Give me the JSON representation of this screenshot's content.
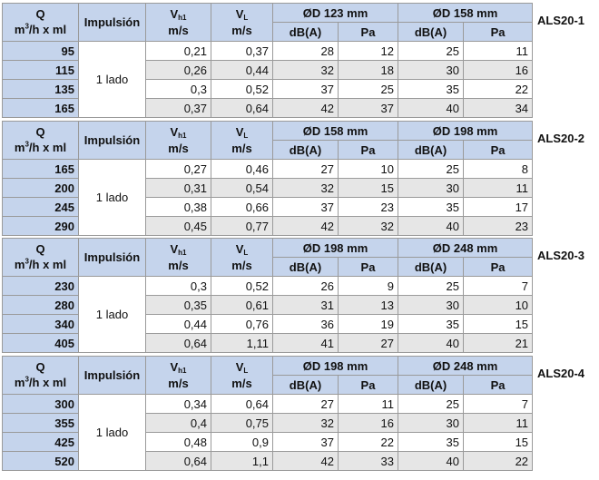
{
  "headers": {
    "q_line1": "Q",
    "q_line2_pre": "m",
    "q_line2_sup": "3",
    "q_line2_post": "/h x ml",
    "impulsion": "Impulsión",
    "vh_main": "V",
    "vh_sub": "h1",
    "vh_unit": "m/s",
    "vl_main": "V",
    "vl_sub": "L",
    "vl_unit": "m/s",
    "dba": "dB(A)",
    "pa": "Pa"
  },
  "blocks": [
    {
      "label": "ALS20-1",
      "d1": "ØD 123 mm",
      "d2": "ØD 158 mm",
      "impulsion": "1 lado",
      "rows": [
        {
          "q": "95",
          "vh": "0,21",
          "vl": "0,37",
          "db1": "28",
          "pa1": "12",
          "db2": "25",
          "pa2": "11"
        },
        {
          "q": "115",
          "vh": "0,26",
          "vl": "0,44",
          "db1": "32",
          "pa1": "18",
          "db2": "30",
          "pa2": "16"
        },
        {
          "q": "135",
          "vh": "0,3",
          "vl": "0,52",
          "db1": "37",
          "pa1": "25",
          "db2": "35",
          "pa2": "22"
        },
        {
          "q": "165",
          "vh": "0,37",
          "vl": "0,64",
          "db1": "42",
          "pa1": "37",
          "db2": "40",
          "pa2": "34"
        }
      ]
    },
    {
      "label": "ALS20-2",
      "d1": "ØD 158 mm",
      "d2": "ØD 198 mm",
      "impulsion": "1 lado",
      "rows": [
        {
          "q": "165",
          "vh": "0,27",
          "vl": "0,46",
          "db1": "27",
          "pa1": "10",
          "db2": "25",
          "pa2": "8"
        },
        {
          "q": "200",
          "vh": "0,31",
          "vl": "0,54",
          "db1": "32",
          "pa1": "15",
          "db2": "30",
          "pa2": "11"
        },
        {
          "q": "245",
          "vh": "0,38",
          "vl": "0,66",
          "db1": "37",
          "pa1": "23",
          "db2": "35",
          "pa2": "17"
        },
        {
          "q": "290",
          "vh": "0,45",
          "vl": "0,77",
          "db1": "42",
          "pa1": "32",
          "db2": "40",
          "pa2": "23"
        }
      ]
    },
    {
      "label": "ALS20-3",
      "d1": "ØD 198 mm",
      "d2": "ØD 248 mm",
      "impulsion": "1 lado",
      "rows": [
        {
          "q": "230",
          "vh": "0,3",
          "vl": "0,52",
          "db1": "26",
          "pa1": "9",
          "db2": "25",
          "pa2": "7"
        },
        {
          "q": "280",
          "vh": "0,35",
          "vl": "0,61",
          "db1": "31",
          "pa1": "13",
          "db2": "30",
          "pa2": "10"
        },
        {
          "q": "340",
          "vh": "0,44",
          "vl": "0,76",
          "db1": "36",
          "pa1": "19",
          "db2": "35",
          "pa2": "15"
        },
        {
          "q": "405",
          "vh": "0,64",
          "vl": "1,11",
          "db1": "41",
          "pa1": "27",
          "db2": "40",
          "pa2": "21"
        }
      ]
    },
    {
      "label": "ALS20-4",
      "d1": "ØD 198 mm",
      "d2": "ØD 248 mm",
      "impulsion": "1 lado",
      "rows": [
        {
          "q": "300",
          "vh": "0,34",
          "vl": "0,64",
          "db1": "27",
          "pa1": "11",
          "db2": "25",
          "pa2": "7"
        },
        {
          "q": "355",
          "vh": "0,4",
          "vl": "0,75",
          "db1": "32",
          "pa1": "16",
          "db2": "30",
          "pa2": "11"
        },
        {
          "q": "425",
          "vh": "0,48",
          "vl": "0,9",
          "db1": "37",
          "pa1": "22",
          "db2": "35",
          "pa2": "15"
        },
        {
          "q": "520",
          "vh": "0,64",
          "vl": "1,1",
          "db1": "42",
          "pa1": "33",
          "db2": "40",
          "pa2": "22"
        }
      ]
    }
  ],
  "colors": {
    "header_bg": "#c5d4ec",
    "shade_bg": "#e6e6e6",
    "border": "#9a9a9a"
  }
}
